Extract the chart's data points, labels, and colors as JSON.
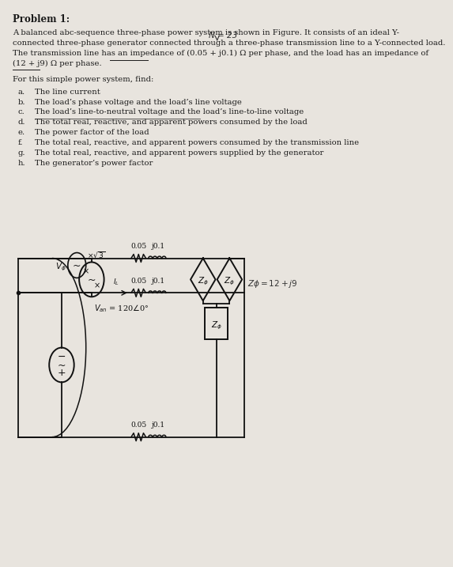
{
  "title": "Problem 1:",
  "line1": "A balanced abc-sequence three-phase power system is shown in Figure. It consists of an ideal Y-",
  "line2": "connected three-phase generator connected through a three-phase transmission line to a Y-connected load.",
  "line3": "The transmission line has an impedance of (0.05 + j0.1) Ω per phase, and the load has an impedance of",
  "line4": "(12 + j9) Ω per phase.",
  "subheading": "For this simple power system, find:",
  "items": [
    [
      "a.",
      "The line current"
    ],
    [
      "b.",
      "The load’s phase voltage and the load’s line voltage"
    ],
    [
      "c.",
      "The load’s line-to-neutral voltage and the load’s line-to-line voltage"
    ],
    [
      "d.",
      "The total real, reactive, and apparent powers consumed by the load"
    ],
    [
      "e.",
      "The power factor of the load"
    ],
    [
      "f.",
      "The total real, reactive, and apparent powers consumed by the transmission line"
    ],
    [
      "g.",
      "The total real, reactive, and apparent powers supplied by the generator"
    ],
    [
      "h.",
      "The generator’s power factor"
    ]
  ],
  "bg_color": "#e8e4de",
  "text_color": "#1a1a1a",
  "wire_color": "#111111"
}
